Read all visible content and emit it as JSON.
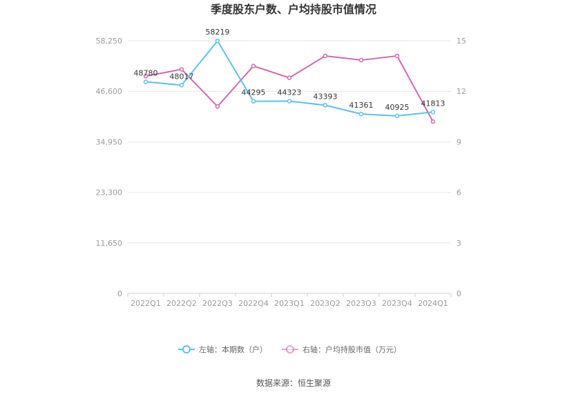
{
  "title": "季度股东户数、户均持股市值情况",
  "source": "数据来源：恒生聚源",
  "chart_data": {
    "type": "line",
    "categories": [
      "2022Q1",
      "2022Q2",
      "2022Q3",
      "2022Q4",
      "2023Q1",
      "2023Q2",
      "2023Q3",
      "2023Q4",
      "2024Q1"
    ],
    "left_axis": {
      "min": 0,
      "max": 58250,
      "ticks": [
        "0",
        "11,650",
        "23,300",
        "34,950",
        "46,600",
        "58,250"
      ],
      "tick_values": [
        0,
        11650,
        23300,
        34950,
        46600,
        58250
      ]
    },
    "right_axis": {
      "min": 0,
      "max": 15,
      "ticks": [
        "0",
        "3",
        "6",
        "9",
        "12",
        "15"
      ],
      "tick_values": [
        0,
        3,
        6,
        9,
        12,
        15
      ]
    },
    "grid": true,
    "legend_position": "bottom",
    "series": [
      {
        "name": "左轴：本期数（户）",
        "axis": "left",
        "color": "#5bc0eb",
        "values": [
          48780,
          48017,
          58219,
          44295,
          44323,
          43393,
          41361,
          40925,
          41813
        ],
        "labels": [
          "48780",
          "48017",
          "58219",
          "44295",
          "44323",
          "43393",
          "41361",
          "40925",
          "41813"
        ]
      },
      {
        "name": "右轴：户均持股市值（万元）",
        "axis": "right",
        "color": "#d067ae",
        "values": [
          12.9,
          13.3,
          11.1,
          13.5,
          12.8,
          14.1,
          13.85,
          14.1,
          10.2
        ],
        "labels": []
      }
    ]
  }
}
